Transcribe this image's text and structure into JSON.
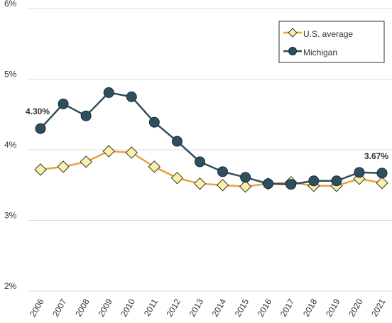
{
  "chart_data": {
    "type": "line",
    "categories": [
      "2006",
      "2007",
      "2008",
      "2009",
      "2010",
      "2011",
      "2012",
      "2013",
      "2014",
      "2015",
      "2016",
      "2017",
      "2018",
      "2019",
      "2020",
      "2021"
    ],
    "series": [
      {
        "name": "U.S. average",
        "color": "#e8a33c",
        "marker_fill": "#fcefa6",
        "marker": "diamond",
        "values": [
          3.72,
          3.76,
          3.83,
          3.98,
          3.96,
          3.76,
          3.6,
          3.52,
          3.5,
          3.48,
          3.52,
          3.54,
          3.49,
          3.49,
          3.59,
          3.53
        ]
      },
      {
        "name": "Michigan",
        "color": "#2f4f5f",
        "marker_fill": "#2f4f5f",
        "marker": "circle",
        "values": [
          4.3,
          4.65,
          4.48,
          4.81,
          4.75,
          4.39,
          4.12,
          3.83,
          3.69,
          3.61,
          3.52,
          3.51,
          3.56,
          3.56,
          3.68,
          3.67
        ],
        "value_labels": [
          "4.30%",
          null,
          null,
          null,
          null,
          null,
          null,
          null,
          null,
          null,
          null,
          null,
          null,
          null,
          null,
          "3.67%"
        ]
      }
    ],
    "ylim": [
      2,
      6
    ],
    "yticks": [
      {
        "value": 2,
        "label": "2%"
      },
      {
        "value": 3,
        "label": "3%"
      },
      {
        "value": 4,
        "label": "4%"
      },
      {
        "value": 5,
        "label": "5%"
      },
      {
        "value": 6,
        "label": "6%"
      }
    ],
    "grid": true,
    "legend": "upper right"
  }
}
